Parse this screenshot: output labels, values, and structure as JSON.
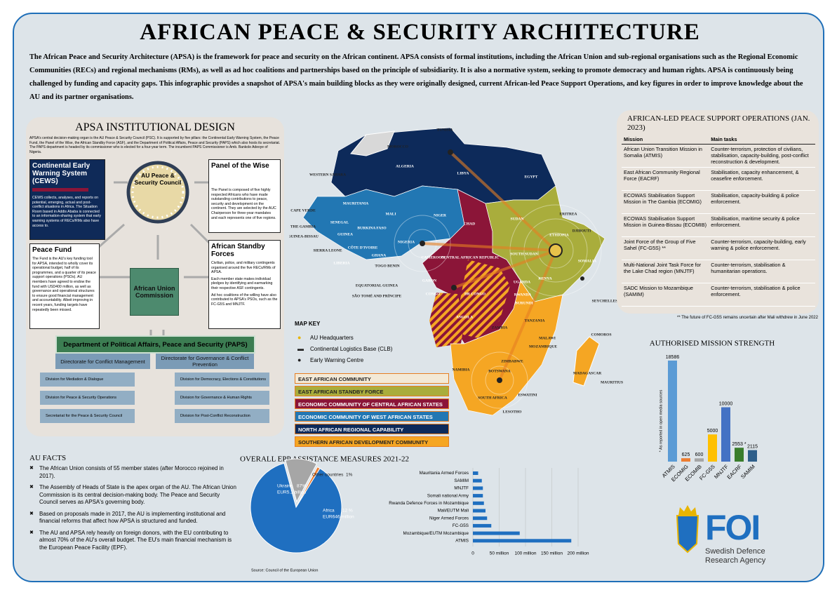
{
  "header": {
    "title": "AFRICAN PEACE & SECURITY ARCHITECTURE",
    "intro": "The African Peace and Security Architecture (APSA) is the framework for peace and security on the African continent. APSA consists of formal institutions, including the African Union and sub-regional organisations such as the Regional Economic Communities (RECs) and regional mechanisms (RMs), as well as ad hoc coalitions and partnerships based on the principle of subsidiarity. It is also a normative system, seeking to promote democracy and human rights. APSA is continuously being challenged by funding and capacity gaps. This infographic provides a snapshot of APSA's main building blocks as they were originally designed, current African-led Peace Support Operations, and key figures in order to improve knowledge about the AU and its partner organisations."
  },
  "institutional": {
    "title": "APSA INSTITUTIONAL DESIGN",
    "description": "APSA's central decision-making organ is the AU Peace & Security Council (PSC). It is supported by five pillars: the Continental Early Warning System, the Peace Fund, the Panel of the Wise, the African Standby Force (ASF), and the Department of Political Affairs, Peace and Security (PAPS) which also hosts its secretariat. The PAPS department is headed by its commissioner who is elected for a four-year term. The incumbent PAPS Commissioner is Amb. Bankole Adeoye of Nigeria.",
    "cews": {
      "title": "Continental Early Warning System (CEWS)",
      "text": "CEWS collects, analyses, and reports on potential, emerging, actual and post-conflict situations in Africa. The Situation Room based in Addis Ababa is connected to an information-sharing system that early warning systems of RECs/RMs also have access to."
    },
    "psc": "AU Peace & Security Council",
    "wise": {
      "title": "Panel of the Wise",
      "text": "The Panel is composed of five highly respected Africans who have made outstanding contributions to peace, security and development on the continent. They are selected by the AUC Chairperson for three-year mandates and each represents one of five regions."
    },
    "fund": {
      "title": "Peace Fund",
      "text": "The Fund is the AU's key funding tool for APSA, intended to wholly cover its operational budget, half of its programmes, and a quarter of its peace support operations (PSOs). AU members have agreed to endow the fund with USD400 million, as well as governance and operational structures to ensure good financial management and accountability. Albeit improving in recent years, funding targets have repeatedly been missed."
    },
    "asf": {
      "title": "African Standby Forces",
      "texts": [
        "Civilian, police, and military contingents organised around the five RECs/RMs of APSA.",
        "Each member state makes individual pledges by identifying and earmarking their respective ASF contingents.",
        "Ad hoc coalitions of the willing have also contributed to APSA's PSOs, such as the FC-G5S and MNJTF."
      ]
    },
    "auc": "African Union Commission",
    "paps": "Department of Political Affairs, Peace and Security (PAPS)",
    "directorates": [
      "Directorate for Conflict Management",
      "Directorate for Governance & Conflict Prevention"
    ],
    "divisions_left": [
      "Division for Mediation & Dialogue",
      "Division for Peace & Security Operations",
      "Secretariat for the Peace & Security Council"
    ],
    "divisions_right": [
      "Division for Democracy, Elections & Constitutions",
      "Division for Governance & Human Rights",
      "Division for Post-Conflict Reconstruction"
    ]
  },
  "map": {
    "labels": [
      "TUNISIA",
      "MOROCCO",
      "ALGERIA",
      "LIBYA",
      "EGYPT",
      "WESTERN SAHARA",
      "MAURITANIA",
      "MALI",
      "NIGER",
      "CHAD",
      "SUDAN",
      "ERITREA",
      "DJIBOUTI",
      "ETHIOPIA",
      "SOMALIA",
      "SOUTH SUDAN",
      "CAPE VERDE",
      "THE GAMBIA",
      "SENEGAL",
      "GUINEA-BISSAU",
      "GUINEA",
      "BURKINA FASO",
      "SIERRA LEONE",
      "LIBERIA",
      "CÔTE D'IVOIRE",
      "GHANA",
      "TOGO BENIN",
      "NIGERIA",
      "CAMEROON",
      "CENTRAL AFRICAN REPUBLIC",
      "EQUATORIAL GUINEA",
      "SÃO TOMÉ AND PRÍNCIPE",
      "GABON",
      "CONGO",
      "DR CONGO",
      "UGANDA",
      "KENYA",
      "RWANDA",
      "BURUNDI",
      "TANZANIA",
      "SEYCHELLES",
      "COMOROS",
      "MALAWI",
      "ZAMBIA",
      "ANGOLA",
      "MOZAMBIQUE",
      "ZIMBABWE",
      "NAMIBIA",
      "BOTSWANA",
      "MADAGASCAR",
      "MAURITIUS",
      "SOUTH AFRICA",
      "ESWATINI",
      "LESOTHO"
    ],
    "key_title": "MAP KEY",
    "symbols": [
      "AU Headquarters",
      "Continental Logistics Base (CLB)",
      "Early Warning Centre"
    ],
    "communities": [
      {
        "name": "EAST AFRICAN COMMUNITY",
        "color": "#f3e9d6"
      },
      {
        "name": "EAST AFRICAN STANDBY FORCE",
        "color": "#a9ad3c"
      },
      {
        "name": "ECONOMIC COMMUNITY OF CENTRAL AFRICAN STATES",
        "color": "#8b1538"
      },
      {
        "name": "ECONOMIC COMMUNITY OF WEST AFRICAN STATES",
        "color": "#2277b3"
      },
      {
        "name": "NORTH AFRICAN REGIONAL CAPABILITY",
        "color": "#0d2a5a"
      },
      {
        "name": "SOUTHERN AFRICAN DEVELOPMENT COMMUNITY",
        "color": "#f5a623"
      }
    ]
  },
  "pso": {
    "title": "AFRICAN-LED PEACE SUPPORT OPERATIONS (JAN. 2023)",
    "headers": [
      "Mission",
      "Main tasks"
    ],
    "rows": [
      [
        "African Union Transition Mission in Somalia (ATMIS)",
        "Counter-terrorism, protection of civilians, stabilisation, capacity-building, post-conflict reconstruction & development."
      ],
      [
        "East African Community Regional Force (EACRF)",
        "Stabilisation, capacity enhancement, & ceasefire enforcement."
      ],
      [
        "ECOWAS Stabilisation Support Mission in The Gambia (ECOMIG)",
        "Stabilisation, capacity-building & police enforcement."
      ],
      [
        "ECOWAS Stabilisation Support Mission in Guinea-Bissau (ECOMIB)",
        "Stabilisation, maritime security & police enforcement."
      ],
      [
        "Joint Force of the Group of Five Sahel (FC-G5S) **",
        "Counter-terrorism, capacity-building, early warning & police enforcement."
      ],
      [
        "Multi-National Joint Task Force for the Lake Chad region (MNJTF)",
        "Counter-terrorism, stabilisation & humanitarian operations."
      ],
      [
        "SADC Mission to Mozambique (SAMIM)",
        "Counter-terrorism, stabilisation & police enforcement."
      ]
    ],
    "footnote": "** The future of FC-G5S remains uncertain after Mali withdrew in June 2022"
  },
  "facts": {
    "title": "AU FACTS",
    "items": [
      "The African Union consists of 55 member states (after Morocco rejoined in 2017).",
      "The Assembly of Heads of State is the apex organ of the AU. The African Union Commission is its central decision-making body. The Peace and Security Council serves as APSA's governing body.",
      "Based on proposals made in 2017, the AU is implementing institutional and financial reforms that affect how APSA is structured and funded.",
      "The AU and APSA rely heavily on foreign donors, with the EU contributing to almost 70% of the AU's overall budget. The EU's main financial mechanism is the European Peace Facility (EPF)."
    ]
  },
  "logo": {
    "mark": "FOI",
    "line1": "Swedish Defence",
    "line2": "Research Agency"
  },
  "chart_data": [
    {
      "type": "bar",
      "title": "AUTHORISED MISSION STRENGTH",
      "y_label": "* As reported in open media sources",
      "categories": [
        "ATMIS",
        "ECOMIG",
        "ECOMIB",
        "FC-G5S",
        "MNJTF",
        "EACRF",
        "SAMIM"
      ],
      "values": [
        18586,
        625,
        600,
        5000,
        10000,
        2553,
        2115
      ],
      "value_labels": [
        "18586",
        "625",
        "600",
        "5000",
        "10000",
        "2553 *",
        "2115"
      ],
      "colors": [
        "#5b9bd5",
        "#ed7d31",
        "#a5a5a5",
        "#ffc000",
        "#4472c4",
        "#3a7d2c",
        "#2f5f8a"
      ],
      "ylim": [
        0,
        20000
      ]
    },
    {
      "type": "pie",
      "title": "OVERALL EPP ASSISTANCE MEASURES 2021-22",
      "categories": [
        "Ukraine",
        "Africa",
        "Other countries"
      ],
      "values": [
        87,
        12,
        1
      ],
      "value_labels": [
        "87%",
        "12 %",
        "1%"
      ],
      "amounts": [
        "EUR5.1 billion",
        "EUR646 million"
      ],
      "colors": [
        "#1f6fc0",
        "#a6a6a6",
        "#ed7d31"
      ]
    },
    {
      "type": "hbar",
      "categories": [
        "Mauritania Armed Forces",
        "SAMIM",
        "MNJTF",
        "Somali national Army",
        "Rwanda Defence Forces in Mozambique",
        "Mali/EUTM Mali",
        "Niger Armed Forces",
        "FC-G5S",
        "Mozambique/EUTM Mozambique",
        "ATMIS"
      ],
      "values": [
        10,
        17,
        19,
        19,
        21,
        24,
        27,
        35,
        89,
        187
      ],
      "color": "#1f6fc0",
      "xlim": [
        0,
        200
      ],
      "xticks": [
        0,
        {
          "value": 50,
          "label": "50 million"
        },
        {
          "value": 100,
          "label": "100 million"
        },
        {
          "value": 150,
          "label": "150 million"
        },
        {
          "value": 200,
          "label": "200 million"
        }
      ],
      "source": "Source: Council of the European Union"
    }
  ]
}
